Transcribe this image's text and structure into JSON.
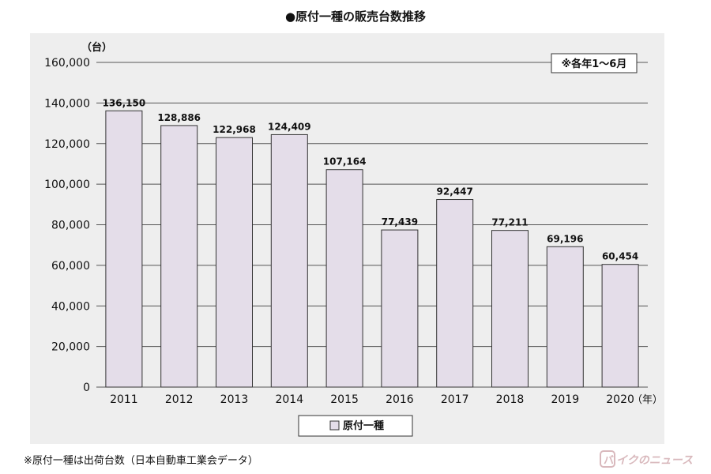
{
  "title": "●原付一種の販売台数推移",
  "footnote": "※原付一種は出荷台数（日本自動車工業会データ）",
  "watermark_text": "バイクのニュース",
  "chart_data": {
    "type": "bar",
    "categories": [
      "2011",
      "2012",
      "2013",
      "2014",
      "2015",
      "2016",
      "2017",
      "2018",
      "2019",
      "2020"
    ],
    "series": [
      {
        "name": "原付一種",
        "values": [
          136150,
          128886,
          122968,
          124409,
          107164,
          77439,
          92447,
          77211,
          69196,
          60454
        ],
        "labels": [
          "136,150",
          "128,886",
          "122,968",
          "124,409",
          "107,164",
          "77,439",
          "92,447",
          "77,211",
          "69,196",
          "60,454"
        ]
      }
    ],
    "yticks": [
      "0",
      "20,000",
      "40,000",
      "60,000",
      "80,000",
      "100,000",
      "120,000",
      "140,000",
      "160,000"
    ],
    "ylim": [
      0,
      160000
    ],
    "ylabel": "（台）",
    "xlabel": "（年）",
    "note": "※各年1～6月",
    "legend_position": "bottom-center",
    "grid": true,
    "colors": {
      "bar_fill": "#e4dde9",
      "bar_stroke": "#333333",
      "grid": "#555555",
      "panel": "#eeeeee"
    }
  }
}
